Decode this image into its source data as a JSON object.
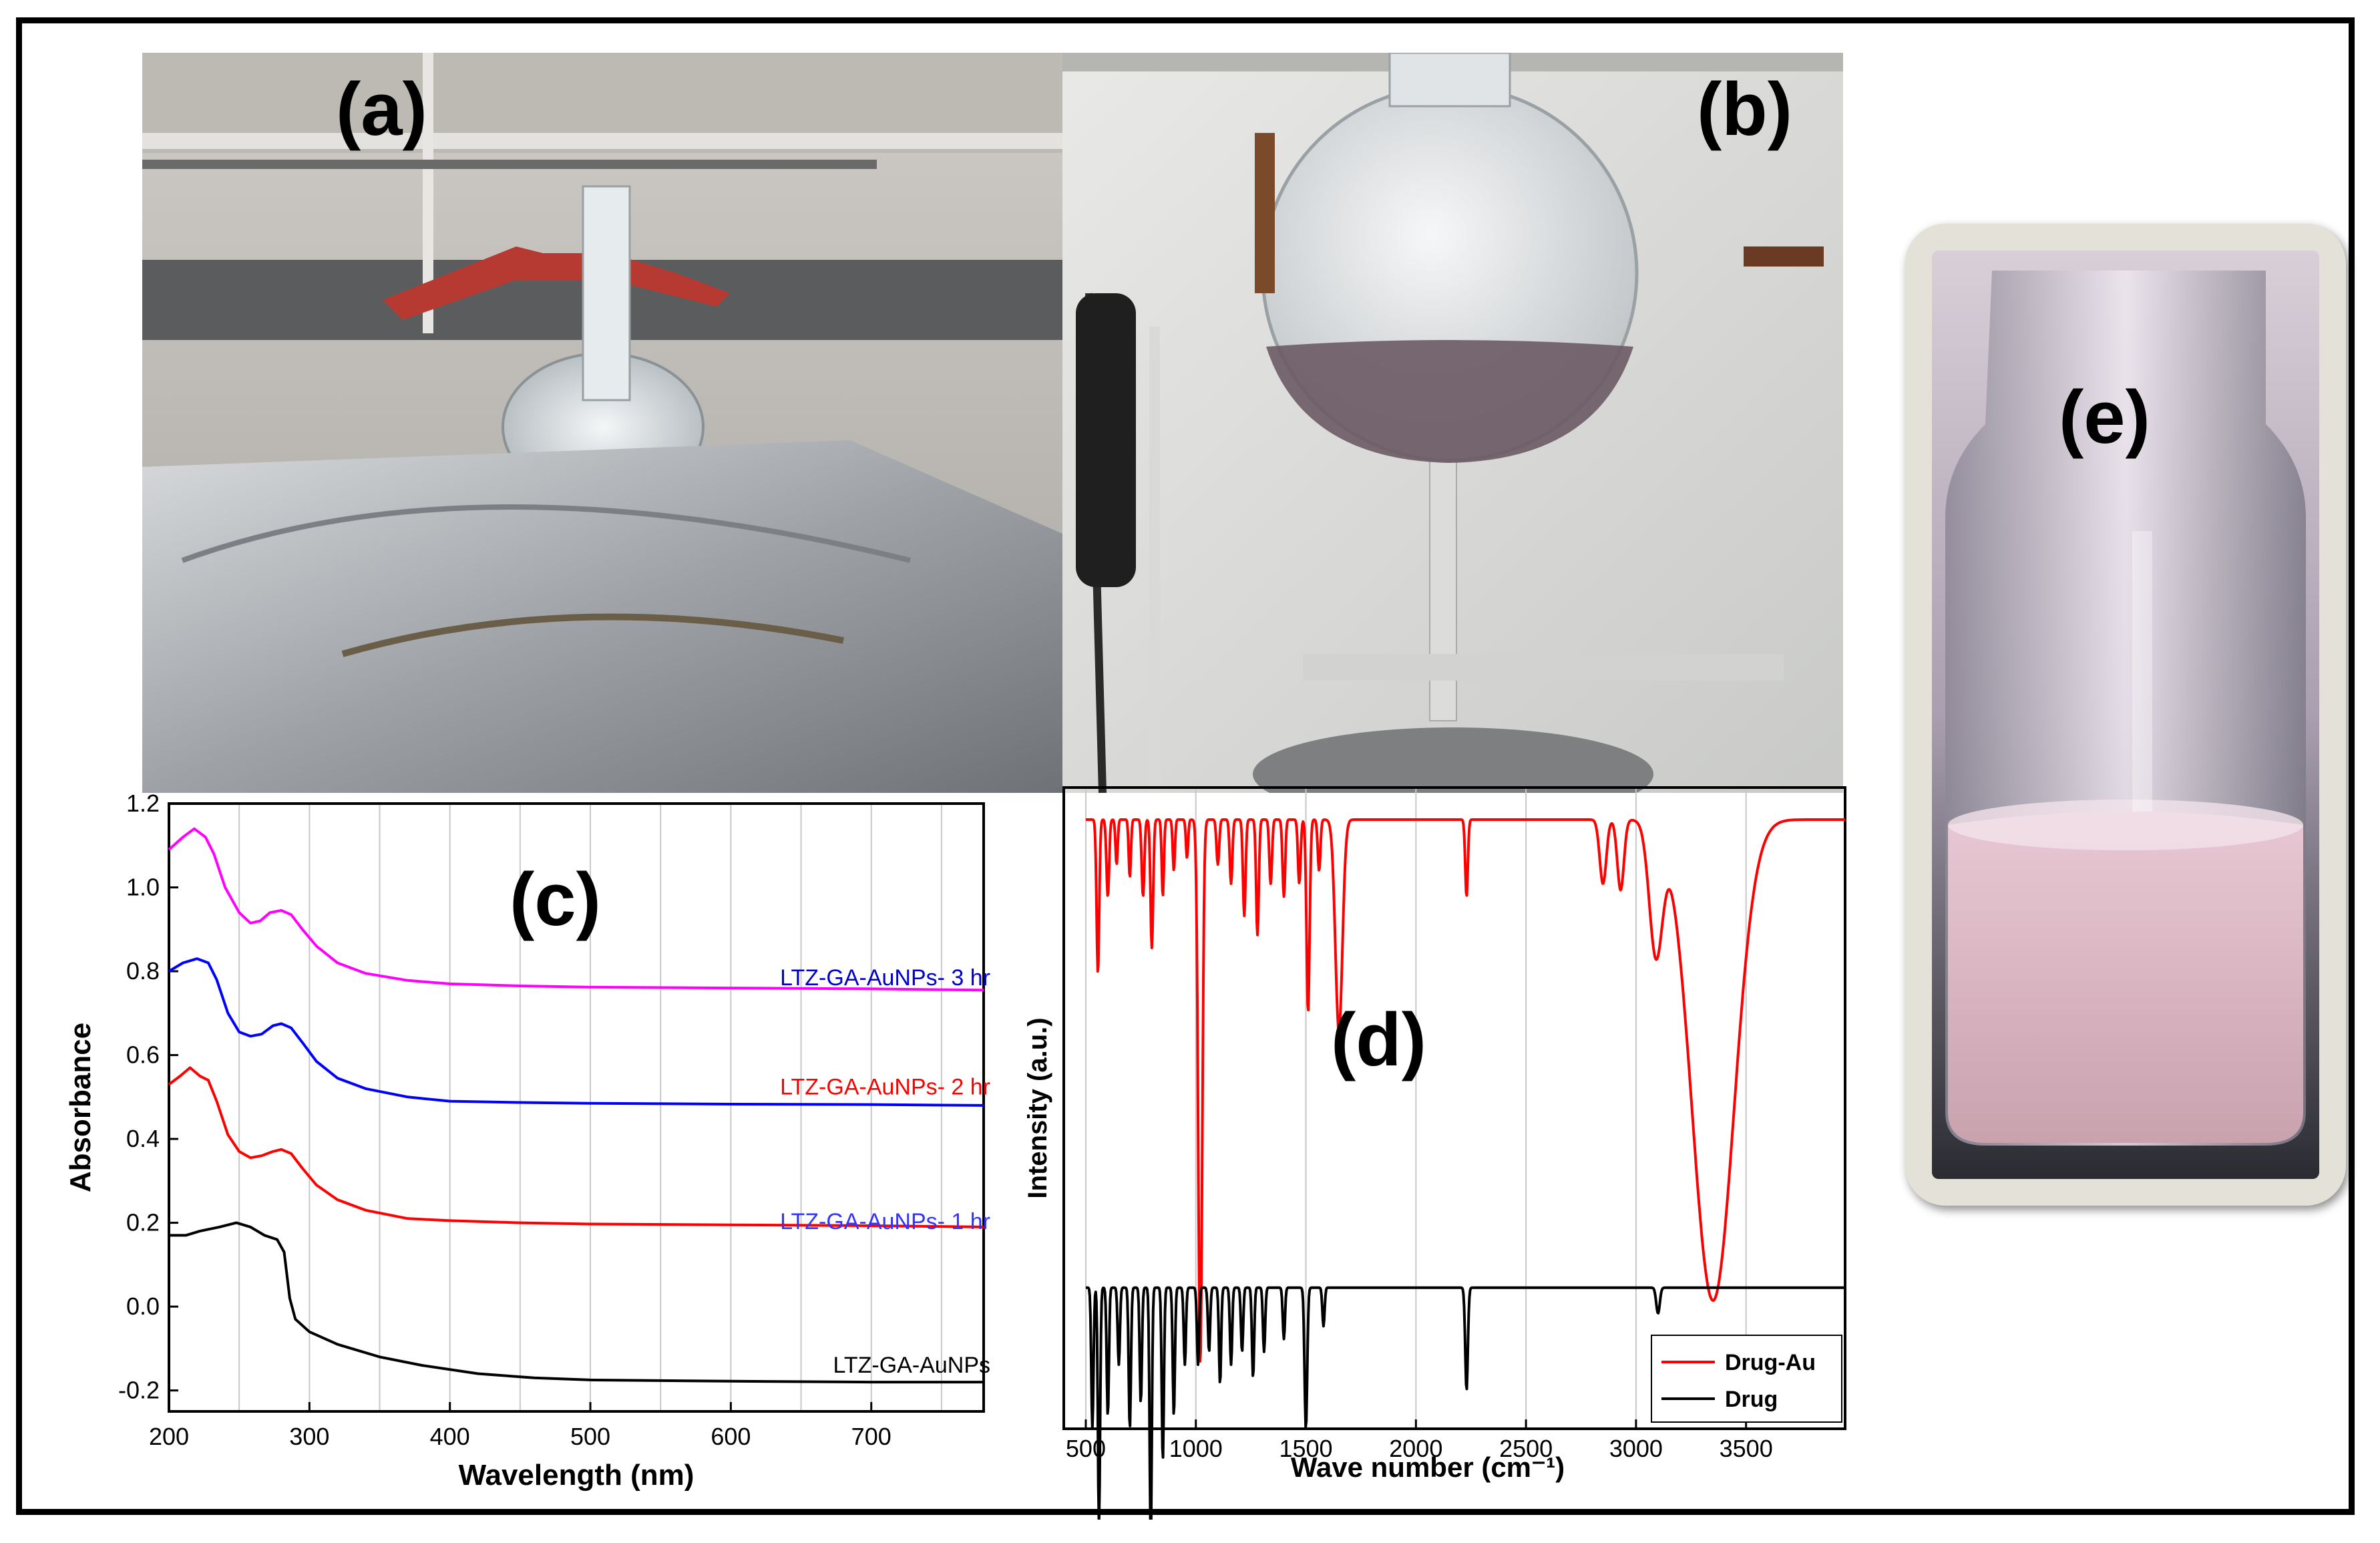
{
  "panel_labels": {
    "a": "(a)",
    "b": "(b)",
    "c": "(c)",
    "d": "(d)",
    "e": "(e)"
  },
  "chart_data": [
    {
      "panel": "(c)",
      "type": "line",
      "xlabel": "Wavelength (nm)",
      "ylabel": "Absorbance",
      "xlim": [
        200,
        780
      ],
      "ylim": [
        -0.25,
        1.2
      ],
      "xticks": [
        200,
        300,
        400,
        500,
        600,
        700
      ],
      "yticks": [
        -0.2,
        0.0,
        0.2,
        0.4,
        0.6,
        0.8,
        1.0,
        1.2
      ],
      "grid": "vertical lines every 50 nm",
      "series": [
        {
          "name": "LTZ-GA-AuNPs- 3 hr",
          "color": "#ff00ff",
          "label_color": "#0000cc",
          "points": [
            [
              200,
              1.09
            ],
            [
              210,
              1.12
            ],
            [
              218,
              1.14
            ],
            [
              226,
              1.12
            ],
            [
              232,
              1.08
            ],
            [
              240,
              1.0
            ],
            [
              250,
              0.94
            ],
            [
              258,
              0.915
            ],
            [
              265,
              0.92
            ],
            [
              272,
              0.94
            ],
            [
              280,
              0.945
            ],
            [
              287,
              0.935
            ],
            [
              295,
              0.9
            ],
            [
              305,
              0.86
            ],
            [
              320,
              0.82
            ],
            [
              340,
              0.795
            ],
            [
              370,
              0.778
            ],
            [
              400,
              0.77
            ],
            [
              450,
              0.765
            ],
            [
              500,
              0.762
            ],
            [
              600,
              0.76
            ],
            [
              700,
              0.758
            ],
            [
              780,
              0.755
            ]
          ]
        },
        {
          "name": "LTZ-GA-AuNPs- 2 hr",
          "color": "#0000ff",
          "label_color": "#ff0000",
          "points": [
            [
              200,
              0.8
            ],
            [
              210,
              0.82
            ],
            [
              220,
              0.83
            ],
            [
              228,
              0.82
            ],
            [
              234,
              0.78
            ],
            [
              242,
              0.7
            ],
            [
              250,
              0.655
            ],
            [
              258,
              0.645
            ],
            [
              266,
              0.65
            ],
            [
              274,
              0.67
            ],
            [
              280,
              0.675
            ],
            [
              287,
              0.665
            ],
            [
              295,
              0.63
            ],
            [
              305,
              0.585
            ],
            [
              320,
              0.545
            ],
            [
              340,
              0.52
            ],
            [
              370,
              0.5
            ],
            [
              400,
              0.49
            ],
            [
              450,
              0.487
            ],
            [
              500,
              0.485
            ],
            [
              600,
              0.483
            ],
            [
              700,
              0.482
            ],
            [
              780,
              0.48
            ]
          ]
        },
        {
          "name": "LTZ-GA-AuNPs- 1 hr",
          "color": "#ff0000",
          "label_color": "#3333ff",
          "points": [
            [
              200,
              0.53
            ],
            [
              208,
              0.55
            ],
            [
              215,
              0.57
            ],
            [
              222,
              0.55
            ],
            [
              228,
              0.54
            ],
            [
              234,
              0.49
            ],
            [
              242,
              0.41
            ],
            [
              250,
              0.37
            ],
            [
              258,
              0.355
            ],
            [
              266,
              0.36
            ],
            [
              274,
              0.37
            ],
            [
              280,
              0.375
            ],
            [
              287,
              0.365
            ],
            [
              295,
              0.33
            ],
            [
              305,
              0.29
            ],
            [
              320,
              0.255
            ],
            [
              340,
              0.23
            ],
            [
              370,
              0.21
            ],
            [
              400,
              0.205
            ],
            [
              450,
              0.2
            ],
            [
              500,
              0.197
            ],
            [
              600,
              0.195
            ],
            [
              700,
              0.193
            ],
            [
              780,
              0.19
            ]
          ]
        },
        {
          "name": "LTZ-GA-AuNPs",
          "color": "#000000",
          "label_color": "#000000",
          "points": [
            [
              200,
              0.17
            ],
            [
              212,
              0.17
            ],
            [
              222,
              0.18
            ],
            [
              236,
              0.19
            ],
            [
              248,
              0.2
            ],
            [
              258,
              0.19
            ],
            [
              268,
              0.17
            ],
            [
              277,
              0.16
            ],
            [
              282,
              0.13
            ],
            [
              286,
              0.02
            ],
            [
              290,
              -0.03
            ],
            [
              300,
              -0.06
            ],
            [
              320,
              -0.09
            ],
            [
              350,
              -0.12
            ],
            [
              380,
              -0.14
            ],
            [
              420,
              -0.16
            ],
            [
              460,
              -0.17
            ],
            [
              500,
              -0.175
            ],
            [
              600,
              -0.178
            ],
            [
              700,
              -0.18
            ],
            [
              780,
              -0.18
            ]
          ]
        }
      ]
    },
    {
      "panel": "(d)",
      "type": "line",
      "xlabel": "Wave number (cm⁻¹)",
      "ylabel": "Intensity (a.u.)",
      "xlim": [
        400,
        3950
      ],
      "xticks": [
        500,
        1000,
        1500,
        2000,
        2500,
        3000,
        3500
      ],
      "grid": "vertical lines every 500 cm-1",
      "legend": "bottom-right",
      "series": [
        {
          "name": "Drug-Au",
          "color": "#ff0000",
          "baseline": 0.95,
          "bands": [
            [
              555,
              0.24,
              6
            ],
            [
              600,
              0.12,
              6
            ],
            [
              640,
              0.07,
              5
            ],
            [
              700,
              0.09,
              5
            ],
            [
              760,
              0.12,
              6
            ],
            [
              800,
              0.2,
              6
            ],
            [
              850,
              0.12,
              5
            ],
            [
              900,
              0.08,
              5
            ],
            [
              960,
              0.06,
              5
            ],
            [
              1020,
              0.85,
              9
            ],
            [
              1100,
              0.07,
              6
            ],
            [
              1160,
              0.1,
              6
            ],
            [
              1220,
              0.15,
              6
            ],
            [
              1280,
              0.18,
              6
            ],
            [
              1340,
              0.1,
              6
            ],
            [
              1400,
              0.12,
              6
            ],
            [
              1470,
              0.1,
              6
            ],
            [
              1510,
              0.3,
              7
            ],
            [
              1560,
              0.08,
              6
            ],
            [
              1650,
              0.33,
              16
            ],
            [
              2230,
              0.12,
              6
            ],
            [
              2850,
              0.1,
              15
            ],
            [
              2930,
              0.11,
              15
            ],
            [
              3090,
              0.2,
              30
            ],
            [
              3350,
              0.75,
              95
            ]
          ]
        },
        {
          "name": "Drug",
          "color": "#000000",
          "baseline": 0.22,
          "bands": [
            [
              530,
              0.22,
              5
            ],
            [
              560,
              0.37,
              5
            ],
            [
              600,
              0.2,
              5
            ],
            [
              650,
              0.12,
              5
            ],
            [
              700,
              0.22,
              5
            ],
            [
              750,
              0.18,
              5
            ],
            [
              795,
              0.4,
              5
            ],
            [
              850,
              0.27,
              5
            ],
            [
              900,
              0.2,
              5
            ],
            [
              950,
              0.12,
              5
            ],
            [
              1010,
              0.12,
              5
            ],
            [
              1060,
              0.1,
              5
            ],
            [
              1110,
              0.15,
              5
            ],
            [
              1160,
              0.12,
              5
            ],
            [
              1210,
              0.1,
              5
            ],
            [
              1260,
              0.14,
              5
            ],
            [
              1310,
              0.1,
              5
            ],
            [
              1400,
              0.08,
              5
            ],
            [
              1500,
              0.22,
              6
            ],
            [
              1580,
              0.06,
              5
            ],
            [
              2230,
              0.16,
              6
            ],
            [
              3100,
              0.04,
              8
            ]
          ]
        }
      ]
    }
  ]
}
